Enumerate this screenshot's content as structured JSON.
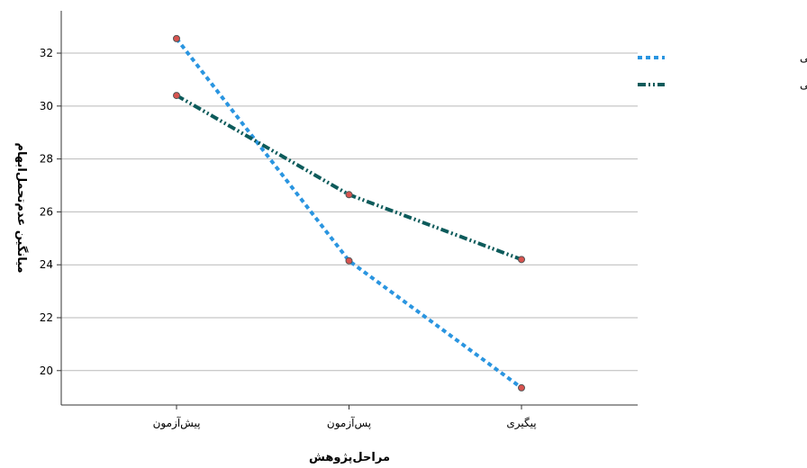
{
  "chart_data": {
    "type": "line",
    "title": "",
    "xlabel": "مراحل‌پژوهش",
    "ylabel": "میانگین عدم‌تحمل‌ابهام",
    "categories": [
      "پیش‌آزمون",
      "پس‌آزمون",
      "پیگیری"
    ],
    "ylim": [
      18.7,
      33.6
    ],
    "yticks": [
      20,
      22,
      24,
      26,
      28,
      30,
      32
    ],
    "grid": "horizontal",
    "legend_position": "top-right",
    "series": [
      {
        "name": "گروه‌درمان فراتشخیصی",
        "values": [
          32.55,
          24.15,
          19.35
        ],
        "color": "#2a95e0",
        "dash": "dotted",
        "marker_color": "#d9534f"
      },
      {
        "name": "گروه‌درمان ذهن‌آگاهی",
        "values": [
          30.4,
          26.65,
          24.2
        ],
        "color": "#0d5b5b",
        "dash": "dash-dot-dot",
        "marker_color": "#d9534f"
      }
    ]
  }
}
